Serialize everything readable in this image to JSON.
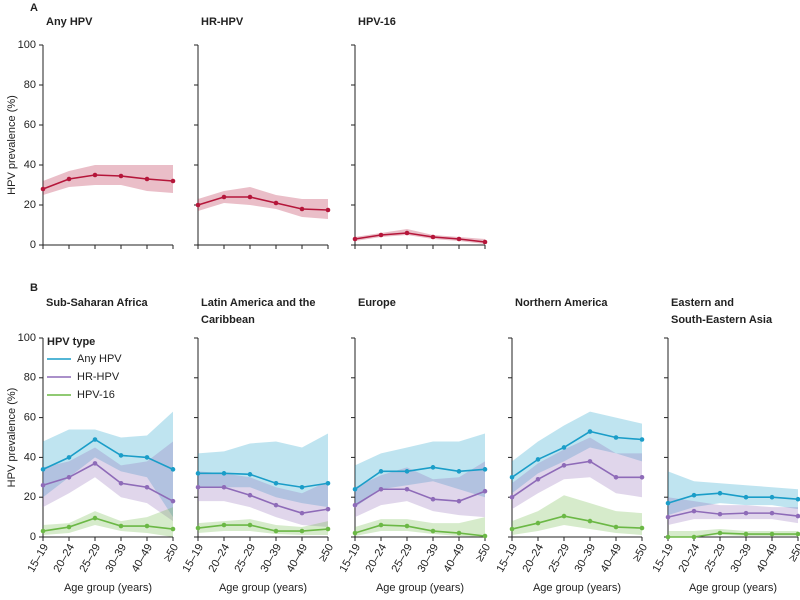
{
  "chart_data": [
    {
      "type": "line",
      "panel": "A",
      "ylabel": "HPV prevalence (%)",
      "title": "Any HPV",
      "show_ytick_labels": true,
      "categories": [
        null,
        null,
        null,
        null,
        null,
        null
      ],
      "ylim": [
        0,
        100
      ],
      "yticks": [
        0,
        20,
        40,
        60,
        80,
        100
      ],
      "series": [
        {
          "color": "#b5163a",
          "values": [
            28,
            33,
            35,
            34.5,
            33,
            32
          ],
          "lower": [
            25,
            29,
            30,
            30,
            27,
            26
          ],
          "upper": [
            32,
            37,
            40,
            40,
            40,
            40
          ]
        }
      ]
    },
    {
      "type": "line",
      "title": "HR-HPV",
      "show_ytick_labels": false,
      "categories": [
        null,
        null,
        null,
        null,
        null,
        null
      ],
      "ylim": [
        0,
        100
      ],
      "yticks": [
        0,
        20,
        40,
        60,
        80,
        100
      ],
      "series": [
        {
          "color": "#b5163a",
          "values": [
            20,
            24,
            24,
            21,
            18,
            17.5
          ],
          "lower": [
            17,
            21,
            20,
            18,
            14,
            13
          ],
          "upper": [
            23,
            27,
            29,
            25,
            23,
            23
          ]
        }
      ]
    },
    {
      "type": "line",
      "title": "HPV-16",
      "show_ytick_labels": false,
      "categories": [
        null,
        null,
        null,
        null,
        null,
        null
      ],
      "ylim": [
        0,
        100
      ],
      "yticks": [
        0,
        20,
        40,
        60,
        80,
        100
      ],
      "series": [
        {
          "color": "#b5163a",
          "values": [
            3,
            5,
            6,
            4,
            3,
            1.5
          ],
          "lower": [
            2,
            4,
            5,
            3,
            2,
            0.5
          ],
          "upper": [
            4,
            6,
            8,
            5,
            4,
            3
          ]
        }
      ]
    },
    {
      "type": "line",
      "panel": "B",
      "ylabel": "HPV prevalence (%)",
      "title": "Sub-Saharan Africa",
      "show_ytick_labels": true,
      "xlabel": "Age group (years)",
      "legend": "upper left",
      "legend_title": "HPV type",
      "categories": [
        "15–19",
        "20–24",
        "25–29",
        "30–39",
        "40–49",
        "≥50"
      ],
      "ylim": [
        0,
        100
      ],
      "yticks": [
        0,
        20,
        40,
        60,
        80,
        100
      ],
      "series": [
        {
          "name": "Any HPV",
          "color": "#1a9dc8",
          "values": [
            34,
            40,
            49,
            41,
            40,
            34
          ],
          "lower": [
            20,
            30,
            40,
            33,
            30,
            10
          ],
          "upper": [
            48,
            54,
            54,
            50,
            51,
            63
          ]
        },
        {
          "name": "HR-HPV",
          "color": "#8e6bb8",
          "values": [
            26,
            30,
            37,
            27,
            25,
            18
          ],
          "lower": [
            15,
            22,
            30,
            20,
            17,
            8
          ],
          "upper": [
            35,
            38,
            45,
            36,
            38,
            48
          ]
        },
        {
          "name": "HPV-16",
          "color": "#6bb845",
          "values": [
            3,
            5,
            9.5,
            5.5,
            5.5,
            4
          ],
          "lower": [
            1,
            2,
            6,
            3,
            2,
            0
          ],
          "upper": [
            6,
            7,
            13,
            8,
            10,
            15
          ]
        }
      ]
    },
    {
      "type": "line",
      "title": "Latin America and the Caribbean",
      "show_ytick_labels": false,
      "xlabel": "Age group (years)",
      "categories": [
        "15–19",
        "20–24",
        "25–29",
        "30–39",
        "40–49",
        "≥50"
      ],
      "ylim": [
        0,
        100
      ],
      "yticks": [
        0,
        20,
        40,
        60,
        80,
        100
      ],
      "series": [
        {
          "color": "#1a9dc8",
          "values": [
            32,
            32,
            31.5,
            27,
            25,
            27
          ],
          "lower": [
            25,
            25,
            25,
            20,
            17,
            15
          ],
          "upper": [
            42,
            43,
            47,
            48,
            45,
            52
          ]
        },
        {
          "color": "#8e6bb8",
          "values": [
            25,
            25,
            21,
            16,
            12,
            14
          ],
          "lower": [
            18,
            18,
            15,
            10,
            6,
            5
          ],
          "upper": [
            33,
            32,
            30,
            25,
            22,
            28
          ]
        },
        {
          "color": "#6bb845",
          "values": [
            4.5,
            6,
            6,
            3,
            3,
            4
          ],
          "lower": [
            2,
            3,
            3,
            1.5,
            1,
            1
          ],
          "upper": [
            7,
            8,
            9,
            6,
            5,
            8
          ]
        }
      ]
    },
    {
      "type": "line",
      "title": "Europe",
      "show_ytick_labels": false,
      "xlabel": "Age group (years)",
      "categories": [
        "15–19",
        "20–24",
        "25–29",
        "30–39",
        "40–49",
        "≥50"
      ],
      "ylim": [
        0,
        100
      ],
      "yticks": [
        0,
        20,
        40,
        60,
        80,
        100
      ],
      "series": [
        {
          "color": "#1a9dc8",
          "values": [
            24,
            33,
            33,
            35,
            33,
            34
          ],
          "lower": [
            15,
            24,
            26,
            28,
            24,
            20
          ],
          "upper": [
            36,
            42,
            45,
            48,
            48,
            52
          ]
        },
        {
          "color": "#8e6bb8",
          "values": [
            16,
            24,
            24,
            19,
            18,
            23
          ],
          "lower": [
            10,
            16,
            18,
            13,
            11,
            10
          ],
          "upper": [
            25,
            31,
            35,
            29,
            30,
            38
          ]
        },
        {
          "color": "#6bb845",
          "values": [
            2,
            6,
            5.5,
            3,
            2,
            0.5
          ],
          "lower": [
            0.5,
            3,
            3,
            1.5,
            0.5,
            0
          ],
          "upper": [
            5,
            9,
            9,
            7,
            7,
            10
          ]
        }
      ]
    },
    {
      "type": "line",
      "title": "Northern America",
      "show_ytick_labels": false,
      "xlabel": "Age group (years)",
      "categories": [
        "15–19",
        "20–24",
        "25–29",
        "30–39",
        "40–49",
        "≥50"
      ],
      "ylim": [
        0,
        100
      ],
      "yticks": [
        0,
        20,
        40,
        60,
        80,
        100
      ],
      "series": [
        {
          "color": "#1a9dc8",
          "values": [
            30,
            39,
            45,
            53,
            50,
            49
          ],
          "lower": [
            22,
            32,
            38,
            45,
            42,
            38
          ],
          "upper": [
            38,
            48,
            56,
            63,
            60,
            57
          ]
        },
        {
          "color": "#8e6bb8",
          "values": [
            20,
            29,
            36,
            38,
            30,
            30
          ],
          "lower": [
            14,
            22,
            29,
            30,
            22,
            20
          ],
          "upper": [
            27,
            37,
            44,
            50,
            42,
            42
          ]
        },
        {
          "color": "#6bb845",
          "values": [
            4,
            7,
            10.5,
            8,
            5,
            4.5
          ],
          "lower": [
            1,
            3,
            6,
            4,
            2,
            1
          ],
          "upper": [
            8,
            13,
            21,
            17,
            13,
            12
          ]
        }
      ]
    },
    {
      "type": "line",
      "title": "Eastern and South-Eastern Asia",
      "show_ytick_labels": false,
      "xlabel": "Age group (years)",
      "categories": [
        "15–19",
        "20–24",
        "25–29",
        "30–39",
        "40–49",
        "≥50"
      ],
      "ylim": [
        0,
        100
      ],
      "yticks": [
        0,
        20,
        40,
        60,
        80,
        100
      ],
      "series": [
        {
          "color": "#1a9dc8",
          "values": [
            17,
            21,
            22,
            20,
            20,
            19
          ],
          "lower": [
            11,
            15,
            17,
            16,
            16,
            14
          ],
          "upper": [
            33,
            28,
            27,
            26,
            25,
            24
          ]
        },
        {
          "color": "#8e6bb8",
          "values": [
            10,
            13,
            11.5,
            12,
            12,
            10.5
          ],
          "lower": [
            6,
            9,
            9,
            9,
            9,
            7
          ],
          "upper": [
            20,
            18,
            16,
            16,
            15,
            15
          ]
        },
        {
          "color": "#6bb845",
          "values": [
            0,
            0,
            2,
            1.5,
            1.5,
            1.5
          ],
          "lower": [
            0,
            0,
            1,
            0.5,
            0.5,
            0.5
          ],
          "upper": [
            3,
            3,
            4,
            3,
            3,
            3
          ]
        }
      ]
    }
  ]
}
